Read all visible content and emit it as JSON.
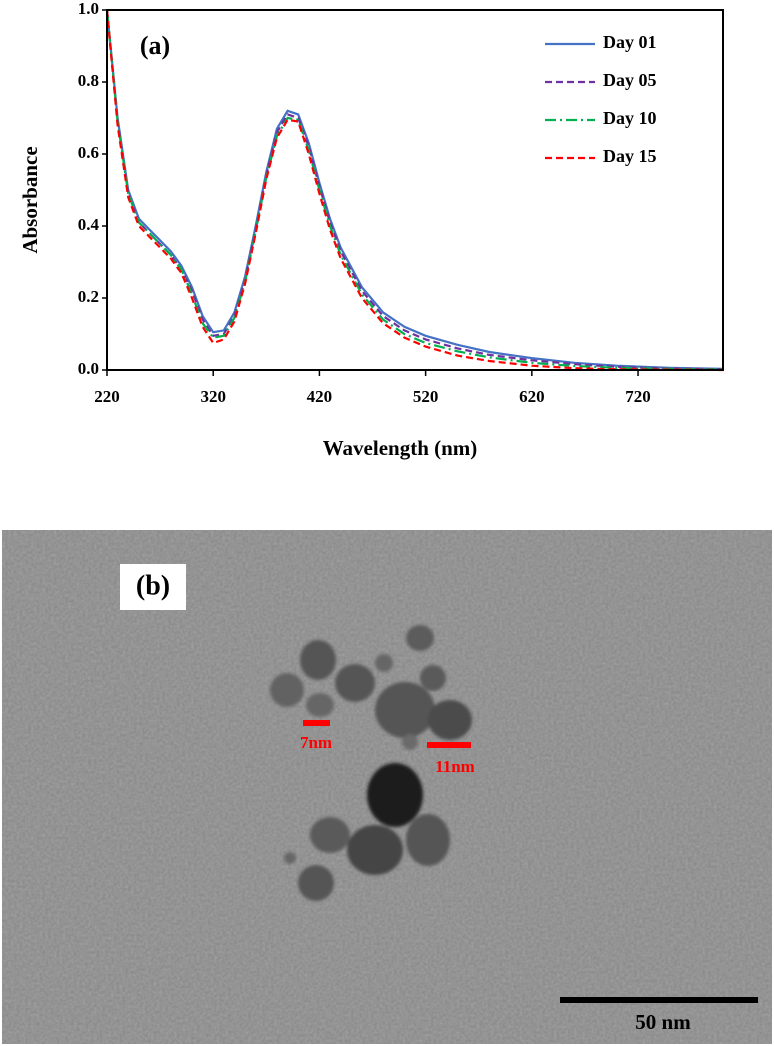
{
  "chart_data": {
    "type": "line",
    "panel_label": "(a)",
    "xlabel": "Wavelength (nm)",
    "ylabel": "Absorbance",
    "x": [
      220,
      230,
      240,
      250,
      260,
      270,
      280,
      290,
      300,
      310,
      320,
      330,
      340,
      350,
      360,
      370,
      380,
      390,
      400,
      410,
      420,
      430,
      440,
      460,
      480,
      500,
      520,
      550,
      580,
      620,
      660,
      700,
      750,
      800
    ],
    "series": [
      {
        "name": "Day 01",
        "color": "#4472c4",
        "linestyle": "solid",
        "values": [
          1.0,
          0.7,
          0.5,
          0.42,
          0.39,
          0.36,
          0.33,
          0.29,
          0.23,
          0.15,
          0.105,
          0.11,
          0.16,
          0.26,
          0.4,
          0.55,
          0.67,
          0.72,
          0.71,
          0.63,
          0.52,
          0.42,
          0.34,
          0.23,
          0.16,
          0.12,
          0.095,
          0.07,
          0.05,
          0.033,
          0.02,
          0.012,
          0.006,
          0.003
        ]
      },
      {
        "name": "Day 05",
        "color": "#7030a0",
        "linestyle": "dashed",
        "values": [
          1.0,
          0.69,
          0.49,
          0.41,
          0.38,
          0.35,
          0.32,
          0.28,
          0.22,
          0.14,
          0.095,
          0.1,
          0.15,
          0.25,
          0.39,
          0.54,
          0.66,
          0.71,
          0.7,
          0.62,
          0.51,
          0.41,
          0.33,
          0.22,
          0.15,
          0.11,
          0.085,
          0.06,
          0.042,
          0.027,
          0.016,
          0.009,
          0.004,
          0.002
        ]
      },
      {
        "name": "Day 10",
        "color": "#00b050",
        "linestyle": "dashdot",
        "values": [
          1.0,
          0.69,
          0.49,
          0.41,
          0.38,
          0.35,
          0.32,
          0.28,
          0.21,
          0.13,
          0.09,
          0.095,
          0.145,
          0.245,
          0.385,
          0.535,
          0.65,
          0.7,
          0.695,
          0.61,
          0.5,
          0.4,
          0.32,
          0.21,
          0.14,
          0.1,
          0.075,
          0.052,
          0.035,
          0.02,
          0.011,
          0.006,
          0.003,
          0.001
        ]
      },
      {
        "name": "Day 15",
        "color": "#ff0000",
        "linestyle": "dashed",
        "values": [
          1.0,
          0.68,
          0.48,
          0.4,
          0.37,
          0.34,
          0.31,
          0.27,
          0.2,
          0.12,
          0.075,
          0.085,
          0.135,
          0.24,
          0.38,
          0.53,
          0.645,
          0.695,
          0.69,
          0.6,
          0.49,
          0.39,
          0.31,
          0.2,
          0.13,
          0.09,
          0.065,
          0.04,
          0.025,
          0.012,
          0.005,
          0.002,
          0.001,
          0.0
        ]
      }
    ],
    "xlim": [
      220,
      800
    ],
    "xticks": [
      220,
      320,
      420,
      520,
      620,
      720
    ],
    "ylim": [
      0,
      1
    ],
    "yticks": [
      {
        "value": 0,
        "label": "0.0"
      },
      0.2,
      0.4,
      0.6,
      0.8,
      {
        "value": 1,
        "label": "1.0"
      }
    ],
    "legend": "upper right"
  },
  "image_panel": {
    "panel_label": "(b)",
    "size_labels": [
      "7nm",
      "11nm"
    ],
    "scale_bar": "50 nm"
  }
}
